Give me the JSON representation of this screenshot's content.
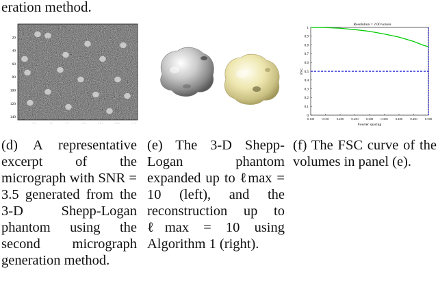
{
  "top_fragment": "eration method.",
  "panel_d": {
    "y_ticks": [
      "20",
      "40",
      "60",
      "80",
      "100",
      "120",
      "140"
    ],
    "x_ticks": [
      "20",
      "40",
      "60",
      "80",
      "100",
      "120",
      "140"
    ]
  },
  "panel_f": {
    "chart_data": {
      "type": "line",
      "title": "Resolution = 2.00 voxels",
      "xlabel": "Fourier spacing",
      "ylabel": "FSC",
      "xlim": [
        0.1,
        0.5
      ],
      "ylim": [
        0,
        1
      ],
      "x_ticks": [
        "0.100",
        "0.150",
        "0.200",
        "0.250",
        "0.300",
        "0.350",
        "0.400",
        "0.450",
        "0.500"
      ],
      "y_ticks": [
        "0",
        "0.1",
        "0.2",
        "0.3",
        "0.4",
        "0.5",
        "0.6",
        "0.7",
        "0.8",
        "0.9",
        "1"
      ],
      "series": [
        {
          "color": "#00cc00",
          "style": "solid",
          "x": [
            0.1,
            0.15,
            0.2,
            0.25,
            0.3,
            0.35,
            0.4,
            0.45,
            0.48,
            0.5
          ],
          "y": [
            1.0,
            0.998,
            0.99,
            0.975,
            0.955,
            0.925,
            0.89,
            0.84,
            0.8,
            0.78
          ]
        },
        {
          "color": "#0000cc",
          "style": "dashed",
          "x": [
            0.1,
            0.5
          ],
          "y": [
            0.5,
            0.5
          ]
        }
      ],
      "cutoff_x": 0.5,
      "cutoff_color": "#0000cc"
    }
  },
  "captions": {
    "d": "(d) A representative excerpt of the micrograph with SNR = 3.5 generated from the 3-D Shepp-Logan phantom using the second micrograph generation method.",
    "e": "(e) The 3-D Shepp-Logan phantom expanded up to ℓmax = 10 (left), and the reconstruction up to ℓmax = 10 using Algorithm 1 (right).",
    "f": "(f) The FSC curve of the volumes in panel (e)."
  },
  "colors": {
    "blob_gray": "#b9b9b9",
    "blob_yellow": "#ece6a8",
    "fsc": "#00cc00",
    "threshold": "#0000cc"
  }
}
